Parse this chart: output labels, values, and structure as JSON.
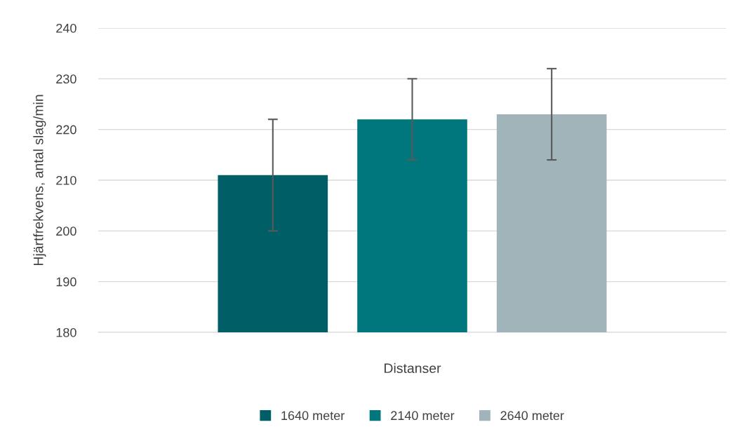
{
  "chart_data": {
    "type": "bar",
    "xlabel": "Distanser",
    "ylabel": "Hjärtfrekvens, antal slag/min",
    "categories": [
      null
    ],
    "series": [
      {
        "name": "1640 meter",
        "color": "#005f66",
        "values": [
          211
        ],
        "errors": [
          11
        ]
      },
      {
        "name": "2140 meter",
        "color": "#00777d",
        "values": [
          222
        ],
        "errors": [
          8
        ]
      },
      {
        "name": "2640 meter",
        "color": "#a0b4ba",
        "values": [
          223
        ],
        "errors": [
          9
        ]
      }
    ],
    "ylim": [
      180,
      240
    ],
    "yticks": [
      180,
      190,
      200,
      210,
      220,
      230,
      240
    ],
    "grid": "y",
    "legend": "bottom"
  }
}
